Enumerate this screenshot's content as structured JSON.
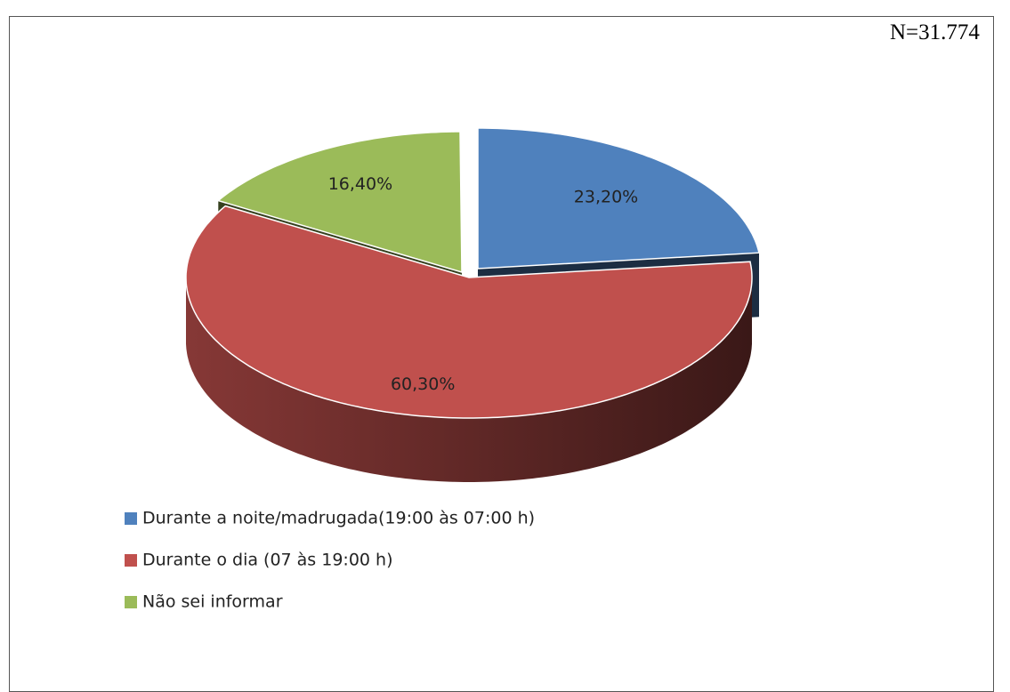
{
  "chart_data": {
    "type": "pie",
    "annotation": "N=31.774",
    "categories": [
      "Durante a noite/madrugada(19:00 às 07:00 h)",
      "Durante o dia (07 às 19:00 h)",
      "Não sei informar"
    ],
    "values": [
      23.2,
      60.3,
      16.4
    ],
    "value_labels": [
      "23,20%",
      "60,30%",
      "16,40%"
    ],
    "colors": [
      "#4f81bd",
      "#c0504d",
      "#9bbb59"
    ],
    "legend": "bottom-left"
  }
}
